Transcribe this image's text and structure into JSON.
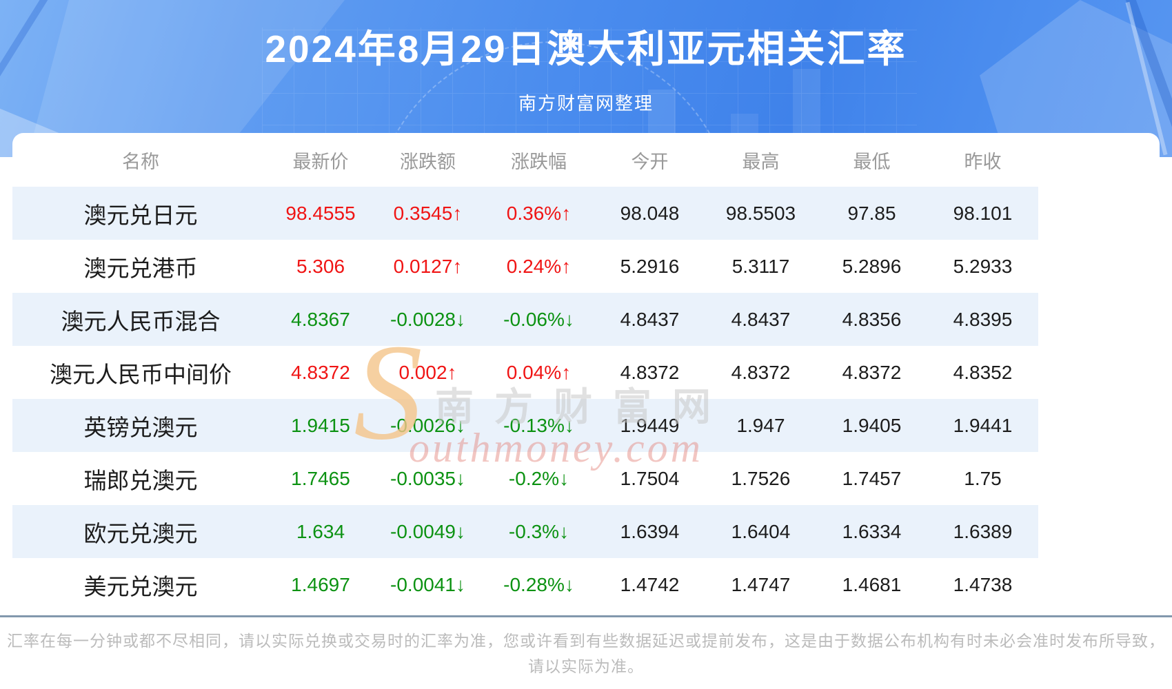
{
  "page": {
    "title": "2024年8月29日澳大利亚元相关汇率",
    "subtitle": "南方财富网整理"
  },
  "watermark": {
    "s": "S",
    "cn": "南方财富网",
    "en": "outhmoney.com"
  },
  "table": {
    "columns": [
      "名称",
      "最新价",
      "涨跌额",
      "涨跌幅",
      "今开",
      "最高",
      "最低",
      "昨收"
    ],
    "rows": [
      {
        "name": "澳元兑日元",
        "last": "98.4555",
        "change": "0.3545↑",
        "change_pct": "0.36%↑",
        "direction": "up",
        "open": "98.048",
        "high": "98.5503",
        "low": "97.85",
        "prev_close": "98.101"
      },
      {
        "name": "澳元兑港币",
        "last": "5.306",
        "change": "0.0127↑",
        "change_pct": "0.24%↑",
        "direction": "up",
        "open": "5.2916",
        "high": "5.3117",
        "low": "5.2896",
        "prev_close": "5.2933"
      },
      {
        "name": "澳元人民币混合",
        "last": "4.8367",
        "change": "-0.0028↓",
        "change_pct": "-0.06%↓",
        "direction": "down",
        "open": "4.8437",
        "high": "4.8437",
        "low": "4.8356",
        "prev_close": "4.8395"
      },
      {
        "name": "澳元人民币中间价",
        "last": "4.8372",
        "change": "0.002↑",
        "change_pct": "0.04%↑",
        "direction": "up",
        "open": "4.8372",
        "high": "4.8372",
        "low": "4.8372",
        "prev_close": "4.8352"
      },
      {
        "name": "英镑兑澳元",
        "last": "1.9415",
        "change": "-0.0026↓",
        "change_pct": "-0.13%↓",
        "direction": "down",
        "open": "1.9449",
        "high": "1.947",
        "low": "1.9405",
        "prev_close": "1.9441"
      },
      {
        "name": "瑞郎兑澳元",
        "last": "1.7465",
        "change": "-0.0035↓",
        "change_pct": "-0.2%↓",
        "direction": "down",
        "open": "1.7504",
        "high": "1.7526",
        "low": "1.7457",
        "prev_close": "1.75"
      },
      {
        "name": "欧元兑澳元",
        "last": "1.634",
        "change": "-0.0049↓",
        "change_pct": "-0.3%↓",
        "direction": "down",
        "open": "1.6394",
        "high": "1.6404",
        "low": "1.6334",
        "prev_close": "1.6389"
      },
      {
        "name": "美元兑澳元",
        "last": "1.4697",
        "change": "-0.0041↓",
        "change_pct": "-0.28%↓",
        "direction": "down",
        "open": "1.4742",
        "high": "1.4747",
        "low": "1.4681",
        "prev_close": "1.4738"
      }
    ]
  },
  "footer": {
    "line1": "汇率在每一分钟或都不尽相同，请以实际兑换或交易时的汇率为准，您或许看到有些数据延迟或提前发布，这是由于数据公布机构有时未必会准时发布所导致，",
    "line2": "请以实际为准。"
  },
  "colors": {
    "up": "#f01414",
    "down": "#0c9212",
    "row_alt": "#eaf2fb",
    "divider": "#8298ad",
    "header_text": "#999999",
    "hero_blue": "#4687ee",
    "footer_text": "#bbbbbb",
    "watermark_orange": "#f5c58a"
  }
}
